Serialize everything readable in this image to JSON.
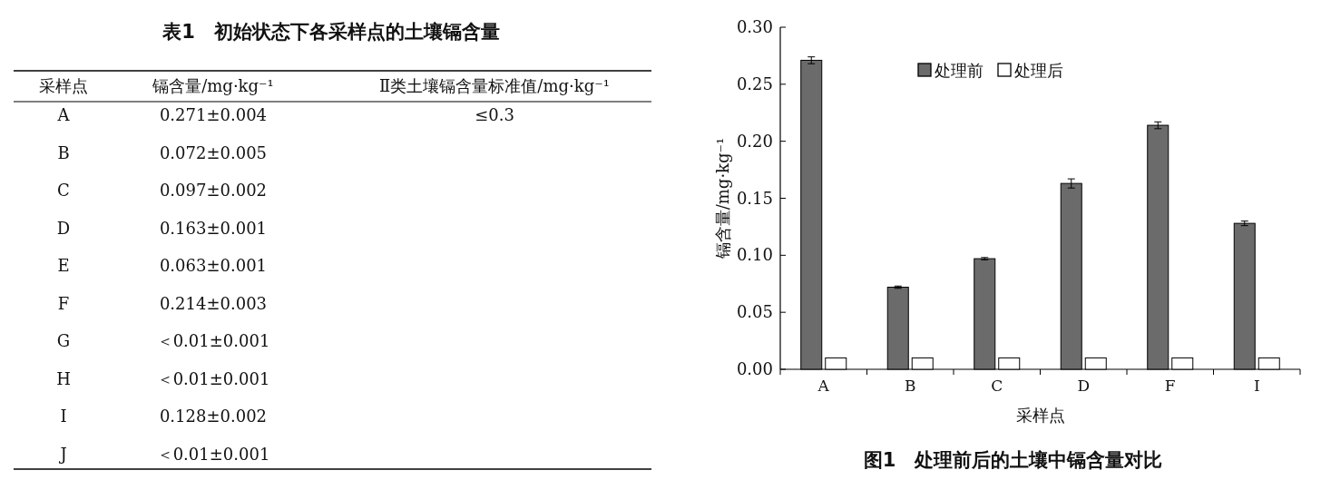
{
  "chart_data": [
    {
      "type": "other",
      "title": "表1　初始状态下各采样点的土壤镉含量",
      "annotations": [
        "采样点",
        "镉含量/mg·kg⁻¹",
        "Ⅱ类土壤镉含量标准值/mg·kg⁻¹",
        "A",
        "0.271±0.004",
        "≤0.3",
        "B",
        "0.072±0.005",
        "C",
        "0.097±0.002",
        "D",
        "0.163±0.001",
        "E",
        "0.063±0.001",
        "F",
        "0.214±0.003",
        "G",
        "＜0.01±0.001",
        "H",
        "＜0.01±0.001",
        "I",
        "0.128±0.002",
        "J",
        "＜0.01±0.001"
      ]
    },
    {
      "type": "bar",
      "title": "图1　处理前后的土壤中镉含量对比",
      "xlabel": "采样点",
      "ylabel": "镉含量/mg·kg⁻¹",
      "categories": [
        "A",
        "B",
        "C",
        "D",
        "F",
        "I"
      ],
      "series": [
        {
          "name": "处理前",
          "color": "#6b6b6b",
          "values": [
            0.271,
            0.072,
            0.097,
            0.163,
            0.214,
            0.128
          ],
          "errors": [
            0.003,
            0.001,
            0.001,
            0.004,
            0.003,
            0.002
          ]
        },
        {
          "name": "处理后",
          "color": "#ffffff",
          "values": [
            0.01,
            0.01,
            0.01,
            0.01,
            0.01,
            0.01
          ]
        }
      ],
      "ylim": [
        0,
        0.3
      ],
      "yticks": [
        {
          "value": 0,
          "label": "0.00"
        },
        {
          "value": 0.05,
          "label": "0.05"
        },
        {
          "value": 0.1,
          "label": "0.10"
        },
        {
          "value": 0.15,
          "label": "0.15"
        },
        {
          "value": 0.2,
          "label": "0.20"
        },
        {
          "value": 0.25,
          "label": "0.25"
        },
        {
          "value": 0.3,
          "label": "0.30"
        }
      ],
      "legend": "top",
      "grid": false
    }
  ]
}
